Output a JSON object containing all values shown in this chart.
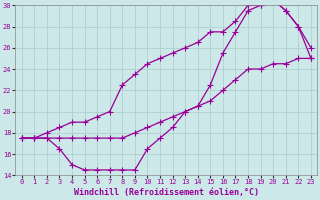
{
  "xlabel": "Windchill (Refroidissement éolien,°C)",
  "bg_color": "#cce8e8",
  "line_color": "#990099",
  "grid_color": "#aacccc",
  "xlim": [
    -0.5,
    23.5
  ],
  "ylim": [
    14,
    30
  ],
  "xticks": [
    0,
    1,
    2,
    3,
    4,
    5,
    6,
    7,
    8,
    9,
    10,
    11,
    12,
    13,
    14,
    15,
    16,
    17,
    18,
    19,
    20,
    21,
    22,
    23
  ],
  "yticks": [
    14,
    16,
    18,
    20,
    22,
    24,
    26,
    28,
    30
  ],
  "line1_x": [
    0,
    1,
    2,
    3,
    4,
    5,
    6,
    7,
    8,
    9,
    10,
    11,
    12,
    13,
    14,
    15,
    16,
    17,
    18,
    19,
    20,
    21,
    22,
    23
  ],
  "line1_y": [
    17.5,
    17.5,
    17.5,
    17.5,
    17.5,
    17.5,
    17.5,
    17.5,
    17.5,
    18.0,
    18.5,
    19.0,
    19.5,
    20.0,
    20.5,
    21.0,
    22.0,
    23.0,
    24.0,
    24.0,
    24.5,
    24.5,
    25.0,
    25.0
  ],
  "line2_x": [
    0,
    1,
    2,
    3,
    4,
    5,
    6,
    7,
    8,
    9,
    10,
    11,
    12,
    13,
    14,
    15,
    16,
    17,
    18,
    19,
    20,
    21,
    22,
    23
  ],
  "line2_y": [
    17.5,
    17.5,
    17.5,
    16.5,
    15.0,
    14.5,
    14.5,
    14.5,
    14.5,
    14.5,
    16.5,
    17.5,
    18.5,
    20.0,
    20.5,
    22.5,
    25.5,
    27.5,
    29.5,
    30.0,
    30.5,
    29.5,
    28.0,
    26.0
  ],
  "line3_x": [
    0,
    1,
    2,
    3,
    4,
    5,
    6,
    7,
    8,
    9,
    10,
    11,
    12,
    13,
    14,
    15,
    16,
    17,
    18,
    19,
    20,
    21,
    22,
    23
  ],
  "line3_y": [
    17.5,
    17.5,
    18.0,
    18.5,
    19.0,
    19.0,
    19.5,
    20.0,
    22.5,
    23.5,
    24.5,
    25.0,
    25.5,
    26.0,
    26.5,
    27.5,
    27.5,
    28.5,
    30.0,
    30.0,
    30.5,
    29.5,
    28.0,
    25.0
  ],
  "marker_size": 2.5,
  "linewidth": 0.9,
  "tick_fontsize": 5.0,
  "label_fontsize": 6.0
}
